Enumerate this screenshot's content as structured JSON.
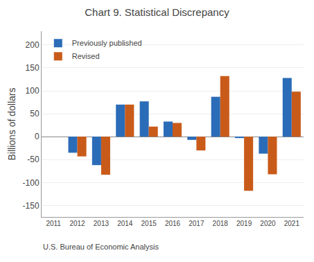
{
  "chart_data": {
    "type": "bar",
    "title": "Chart 9. Statistical Discrepancy",
    "ylabel": "Billions of dollars",
    "annotations": [
      "U.S. Bureau of Economic Analysis"
    ],
    "categories": [
      "2011",
      "2012",
      "2013",
      "2014",
      "2015",
      "2016",
      "2017",
      "2018",
      "2019",
      "2020",
      "2021"
    ],
    "series": [
      {
        "name": "Previously published",
        "color": "#2B6CB8",
        "values": [
          0,
          -35,
          -62,
          70,
          77,
          33,
          -7,
          87,
          -3,
          -37,
          128
        ]
      },
      {
        "name": "Revised",
        "color": "#C95B1A",
        "values": [
          0,
          -43,
          -83,
          70,
          22,
          30,
          -30,
          132,
          -118,
          -82,
          98
        ]
      }
    ],
    "ylim": [
      -175,
      230
    ],
    "yticks": [
      -150,
      -100,
      -50,
      0,
      50,
      100,
      150,
      200
    ],
    "grid": true,
    "legend": "upper left"
  }
}
